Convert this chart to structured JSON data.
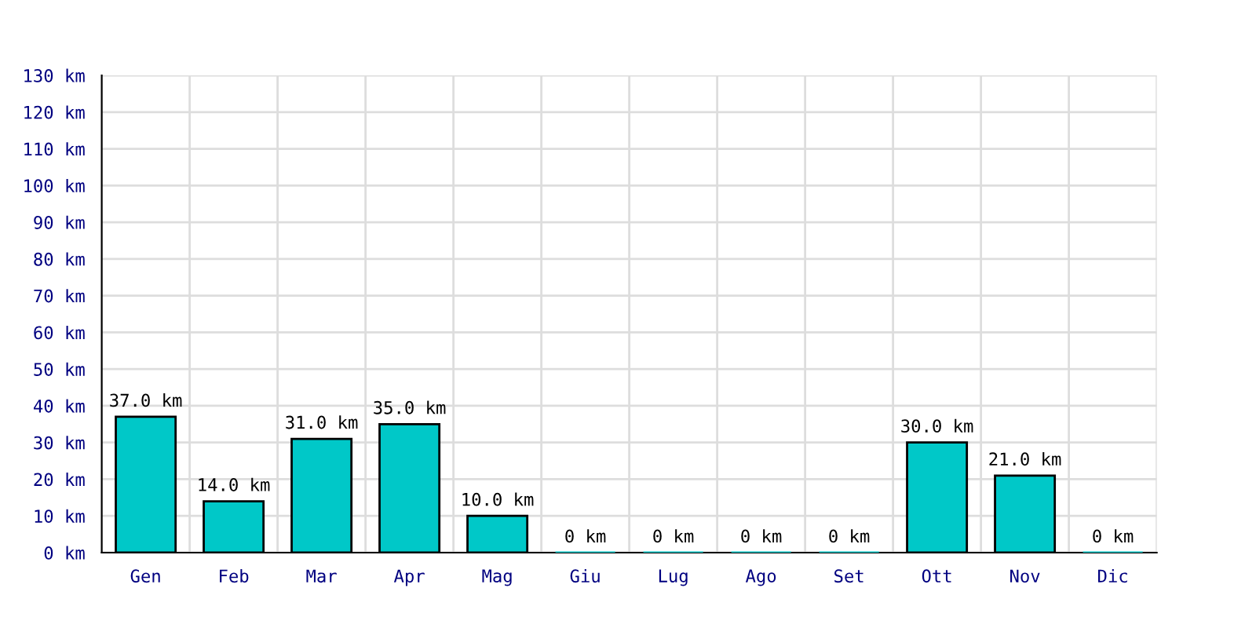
{
  "chart_data": {
    "type": "bar",
    "categories": [
      "Gen",
      "Feb",
      "Mar",
      "Apr",
      "Mag",
      "Giu",
      "Lug",
      "Ago",
      "Set",
      "Ott",
      "Nov",
      "Dic"
    ],
    "values": [
      37,
      14,
      31,
      35,
      10,
      0,
      0,
      0,
      0,
      30,
      21,
      0
    ],
    "value_labels": [
      "37.0 km",
      "14.0 km",
      "31.0 km",
      "35.0 km",
      "10.0 km",
      "0 km",
      "0 km",
      "0 km",
      "0 km",
      "30.0 km",
      "21.0 km",
      "0 km"
    ],
    "color": "#00c8c8",
    "ylim": [
      0,
      130
    ],
    "yticks": [
      {
        "value": 0,
        "label": "0 km"
      },
      {
        "value": 10,
        "label": "10 km"
      },
      {
        "value": 20,
        "label": "20 km"
      },
      {
        "value": 30,
        "label": "30 km"
      },
      {
        "value": 40,
        "label": "40 km"
      },
      {
        "value": 50,
        "label": "50 km"
      },
      {
        "value": 60,
        "label": "60 km"
      },
      {
        "value": 70,
        "label": "70 km"
      },
      {
        "value": 80,
        "label": "80 km"
      },
      {
        "value": 90,
        "label": "90 km"
      },
      {
        "value": 100,
        "label": "100 km"
      },
      {
        "value": 110,
        "label": "110 km"
      },
      {
        "value": 120,
        "label": "120 km"
      },
      {
        "value": 130,
        "label": "130 km"
      }
    ],
    "grid": true
  }
}
